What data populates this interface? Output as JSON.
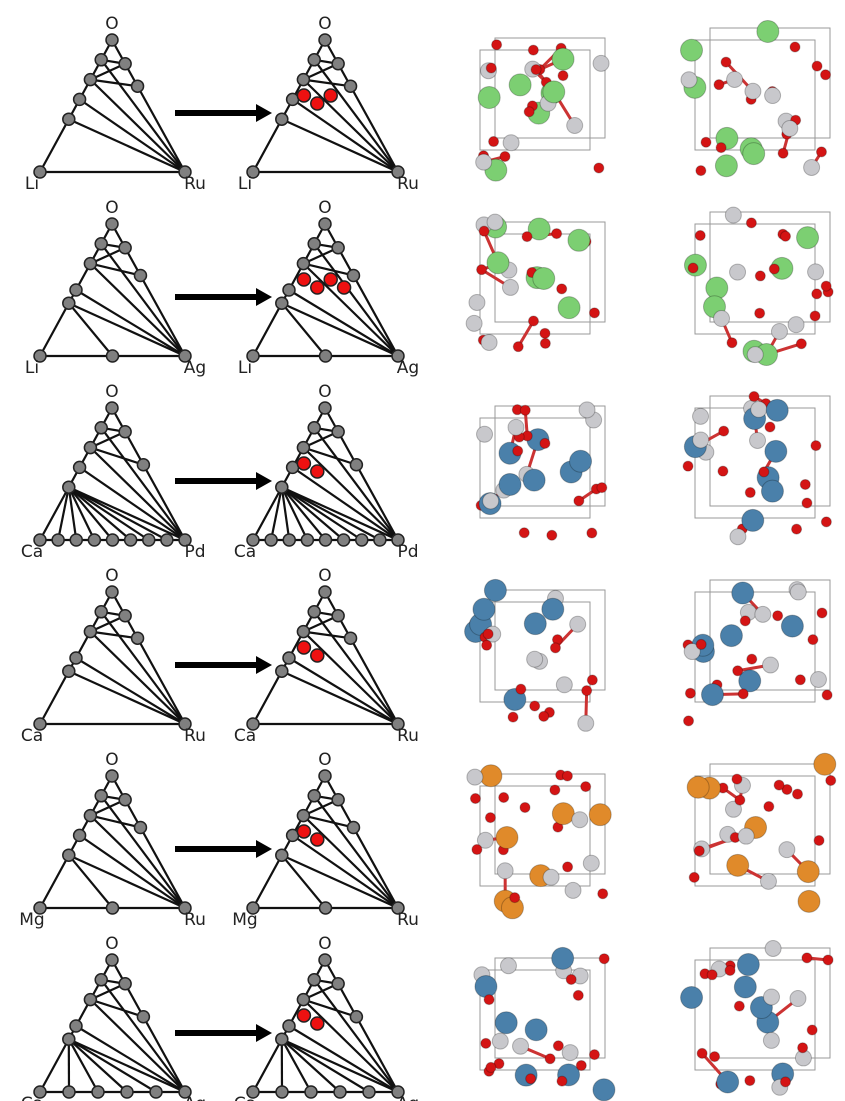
{
  "rows": [
    {
      "top": "O",
      "left": "Li",
      "right": "Ru"
    },
    {
      "top": "O",
      "left": "Li",
      "right": "Ag"
    },
    {
      "top": "O",
      "left": "Ca",
      "right": "Pd"
    },
    {
      "top": "O",
      "left": "Ca",
      "right": "Ru"
    },
    {
      "top": "O",
      "left": "Mg",
      "right": "Ru"
    },
    {
      "top": "O",
      "left": "Ca",
      "right": "Ag"
    }
  ]
}
